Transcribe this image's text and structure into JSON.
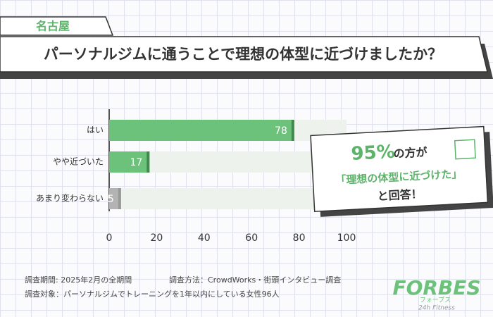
{
  "region_tag": "名古屋",
  "headline": "パーソナルジムに通うことで理想の体型に近づけましたか？",
  "chart_data": {
    "type": "bar",
    "orientation": "horizontal",
    "categories": [
      "はい",
      "やや近づいた",
      "あまり変わらない"
    ],
    "values": [
      78,
      17,
      5
    ],
    "colors": [
      "#6dc27b",
      "#6dc27b",
      "#b3b3b3"
    ],
    "track_color": "#eef2ec",
    "xlim": [
      0,
      100
    ],
    "xticks": [
      0,
      20,
      40,
      60,
      80,
      100
    ]
  },
  "callout": {
    "highlight": "95%",
    "line1_rest": "の方が",
    "line2": "「理想の体型に近づけた」",
    "line3": "と回答！"
  },
  "notes": [
    "調査期間: 2025年2月の全期間",
    "調査方法：CrowdWorks・街頭インタビュー調査",
    "調査対象：パーソナルジムでトレーニングを1年以内にしている女性96人"
  ],
  "logo": {
    "name": "FORBES",
    "kana": "フォーブス",
    "sub": "24h Fitness"
  }
}
